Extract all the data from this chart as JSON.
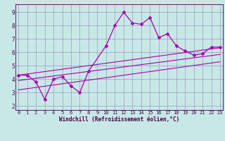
{
  "xlabel": "Windchill (Refroidissement éolien,°C)",
  "bg_color": "#c8e8e8",
  "grid_color": "#9999bb",
  "line_color": "#aa00aa",
  "spine_color": "#440044",
  "x_ticks": [
    0,
    1,
    2,
    3,
    4,
    5,
    6,
    7,
    8,
    9,
    10,
    11,
    12,
    13,
    14,
    15,
    16,
    17,
    18,
    19,
    20,
    21,
    22,
    23
  ],
  "y_ticks": [
    2,
    3,
    4,
    5,
    6,
    7,
    8,
    9
  ],
  "xlim": [
    -0.3,
    23.3
  ],
  "ylim": [
    1.7,
    9.6
  ],
  "series1_x": [
    0,
    1,
    2,
    3,
    4,
    5,
    6,
    7,
    8,
    10,
    11,
    12,
    13,
    14,
    15,
    16,
    17,
    18,
    19,
    20,
    21,
    22,
    23
  ],
  "series1_y": [
    4.3,
    4.3,
    3.8,
    2.5,
    4.0,
    4.2,
    3.5,
    3.0,
    4.6,
    6.5,
    8.0,
    9.0,
    8.2,
    8.1,
    8.6,
    7.1,
    7.4,
    6.5,
    6.1,
    5.8,
    5.9,
    6.4,
    6.4
  ],
  "series2_x": [
    0,
    23
  ],
  "series2_y": [
    4.3,
    6.35
  ],
  "series3_x": [
    0,
    23
  ],
  "series3_y": [
    3.9,
    5.85
  ],
  "series4_x": [
    0,
    23
  ],
  "series4_y": [
    3.2,
    5.3
  ],
  "tick_fontsize": 5.0,
  "xlabel_fontsize": 5.5
}
